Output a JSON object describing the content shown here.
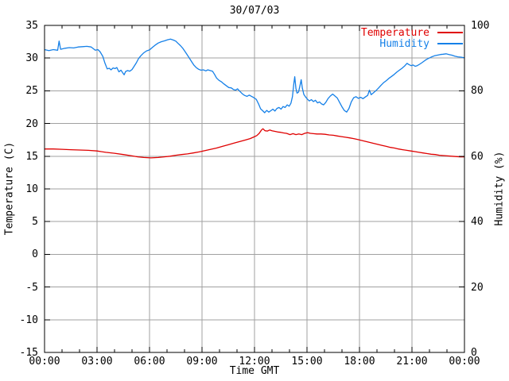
{
  "title": "30/07/03",
  "axes": {
    "x": {
      "label": "Time GMT",
      "tick_labels": [
        "00:00",
        "03:00",
        "06:00",
        "09:00",
        "12:00",
        "15:00",
        "18:00",
        "21:00",
        "00:00"
      ],
      "major_tick_minutes": [
        0,
        180,
        360,
        540,
        720,
        900,
        1080,
        1260,
        1440
      ],
      "minor_tick_step_minutes": 60,
      "range_minutes": [
        0,
        1440
      ]
    },
    "y_left": {
      "label": "Temperature (C)",
      "tick_values": [
        35,
        30,
        25,
        20,
        15,
        10,
        5,
        0,
        -5,
        -10,
        -15
      ],
      "range": [
        -15,
        35
      ]
    },
    "y_right": {
      "label": "Humidity (%)",
      "tick_values": [
        100,
        80,
        60,
        40,
        20,
        0
      ],
      "range": [
        0,
        100
      ]
    }
  },
  "legend": {
    "items": [
      {
        "label": "Temperature",
        "color": "#df0000"
      },
      {
        "label": "Humidity",
        "color": "#1580e8"
      }
    ]
  },
  "colors": {
    "background": "#ffffff",
    "border": "#000000",
    "grid": "#a0a0a0",
    "text": "#000000",
    "temperature_line": "#df0000",
    "humidity_line": "#1580e8"
  },
  "chart_data": {
    "type": "line",
    "title": "30/07/03",
    "xlabel": "Time GMT",
    "x_unit": "minutes since 00:00 GMT",
    "x_range": [
      0,
      1440
    ],
    "grid": true,
    "legend_position": "top-right-inside",
    "series": [
      {
        "name": "Temperature",
        "axis": "left",
        "axis_label": "Temperature (C)",
        "axis_range": [
          -15,
          35
        ],
        "color": "#df0000",
        "points": [
          [
            0,
            16.1
          ],
          [
            30,
            16.1
          ],
          [
            60,
            16.05
          ],
          [
            90,
            16.0
          ],
          [
            120,
            15.95
          ],
          [
            150,
            15.9
          ],
          [
            180,
            15.8
          ],
          [
            210,
            15.6
          ],
          [
            240,
            15.45
          ],
          [
            270,
            15.25
          ],
          [
            300,
            15.05
          ],
          [
            320,
            14.9
          ],
          [
            340,
            14.8
          ],
          [
            365,
            14.75
          ],
          [
            390,
            14.8
          ],
          [
            410,
            14.9
          ],
          [
            430,
            15.0
          ],
          [
            450,
            15.15
          ],
          [
            470,
            15.25
          ],
          [
            490,
            15.35
          ],
          [
            510,
            15.5
          ],
          [
            530,
            15.65
          ],
          [
            550,
            15.85
          ],
          [
            570,
            16.05
          ],
          [
            590,
            16.25
          ],
          [
            610,
            16.5
          ],
          [
            630,
            16.75
          ],
          [
            650,
            17.0
          ],
          [
            670,
            17.25
          ],
          [
            690,
            17.5
          ],
          [
            705,
            17.7
          ],
          [
            718,
            17.95
          ],
          [
            728,
            18.15
          ],
          [
            736,
            18.5
          ],
          [
            744,
            19.0
          ],
          [
            749,
            19.2
          ],
          [
            756,
            18.9
          ],
          [
            764,
            18.85
          ],
          [
            772,
            19.0
          ],
          [
            780,
            18.9
          ],
          [
            790,
            18.8
          ],
          [
            800,
            18.7
          ],
          [
            810,
            18.65
          ],
          [
            820,
            18.55
          ],
          [
            830,
            18.5
          ],
          [
            842,
            18.3
          ],
          [
            852,
            18.45
          ],
          [
            862,
            18.3
          ],
          [
            872,
            18.4
          ],
          [
            882,
            18.3
          ],
          [
            892,
            18.5
          ],
          [
            902,
            18.6
          ],
          [
            912,
            18.5
          ],
          [
            922,
            18.45
          ],
          [
            934,
            18.4
          ],
          [
            948,
            18.4
          ],
          [
            962,
            18.35
          ],
          [
            976,
            18.25
          ],
          [
            990,
            18.2
          ],
          [
            1004,
            18.1
          ],
          [
            1018,
            18.0
          ],
          [
            1032,
            17.9
          ],
          [
            1046,
            17.8
          ],
          [
            1060,
            17.7
          ],
          [
            1074,
            17.55
          ],
          [
            1088,
            17.4
          ],
          [
            1102,
            17.25
          ],
          [
            1116,
            17.1
          ],
          [
            1130,
            16.95
          ],
          [
            1144,
            16.8
          ],
          [
            1158,
            16.65
          ],
          [
            1172,
            16.5
          ],
          [
            1186,
            16.35
          ],
          [
            1200,
            16.25
          ],
          [
            1214,
            16.1
          ],
          [
            1228,
            16.0
          ],
          [
            1242,
            15.9
          ],
          [
            1256,
            15.8
          ],
          [
            1270,
            15.7
          ],
          [
            1284,
            15.6
          ],
          [
            1298,
            15.5
          ],
          [
            1312,
            15.4
          ],
          [
            1326,
            15.3
          ],
          [
            1340,
            15.25
          ],
          [
            1354,
            15.15
          ],
          [
            1368,
            15.1
          ],
          [
            1382,
            15.05
          ],
          [
            1396,
            15.0
          ],
          [
            1410,
            14.95
          ],
          [
            1425,
            14.9
          ],
          [
            1440,
            14.9
          ]
        ]
      },
      {
        "name": "Humidity",
        "axis": "right",
        "axis_label": "Humidity (%)",
        "axis_range": [
          0,
          100
        ],
        "color": "#1580e8",
        "points": [
          [
            0,
            92.6
          ],
          [
            15,
            92.3
          ],
          [
            30,
            92.6
          ],
          [
            45,
            92.4
          ],
          [
            50,
            95.2
          ],
          [
            55,
            92.7
          ],
          [
            70,
            93.0
          ],
          [
            85,
            93.2
          ],
          [
            100,
            93.1
          ],
          [
            115,
            93.4
          ],
          [
            130,
            93.5
          ],
          [
            145,
            93.6
          ],
          [
            160,
            93.4
          ],
          [
            174,
            92.4
          ],
          [
            183,
            92.6
          ],
          [
            190,
            92.0
          ],
          [
            200,
            90.5
          ],
          [
            207,
            88.5
          ],
          [
            215,
            86.7
          ],
          [
            222,
            86.9
          ],
          [
            228,
            86.4
          ],
          [
            235,
            87.0
          ],
          [
            242,
            86.8
          ],
          [
            248,
            87.1
          ],
          [
            255,
            85.8
          ],
          [
            262,
            86.3
          ],
          [
            268,
            85.5
          ],
          [
            273,
            84.9
          ],
          [
            278,
            85.9
          ],
          [
            285,
            86.2
          ],
          [
            292,
            86.0
          ],
          [
            300,
            86.5
          ],
          [
            308,
            87.6
          ],
          [
            315,
            88.6
          ],
          [
            322,
            89.8
          ],
          [
            330,
            90.7
          ],
          [
            340,
            91.6
          ],
          [
            350,
            92.2
          ],
          [
            360,
            92.5
          ],
          [
            370,
            93.3
          ],
          [
            380,
            94.0
          ],
          [
            390,
            94.6
          ],
          [
            400,
            95.0
          ],
          [
            412,
            95.3
          ],
          [
            422,
            95.6
          ],
          [
            432,
            95.8
          ],
          [
            442,
            95.5
          ],
          [
            450,
            95.2
          ],
          [
            458,
            94.5
          ],
          [
            466,
            93.8
          ],
          [
            474,
            93.0
          ],
          [
            482,
            92.0
          ],
          [
            490,
            90.9
          ],
          [
            498,
            89.8
          ],
          [
            505,
            88.8
          ],
          [
            512,
            87.9
          ],
          [
            520,
            87.1
          ],
          [
            528,
            86.6
          ],
          [
            536,
            86.3
          ],
          [
            545,
            86.4
          ],
          [
            553,
            86.1
          ],
          [
            560,
            86.4
          ],
          [
            568,
            86.2
          ],
          [
            576,
            86.0
          ],
          [
            583,
            85.0
          ],
          [
            590,
            83.9
          ],
          [
            598,
            83.2
          ],
          [
            606,
            82.8
          ],
          [
            615,
            82.1
          ],
          [
            624,
            81.5
          ],
          [
            632,
            81.0
          ],
          [
            640,
            80.9
          ],
          [
            648,
            80.4
          ],
          [
            655,
            80.2
          ],
          [
            662,
            80.6
          ],
          [
            670,
            79.8
          ],
          [
            678,
            79.1
          ],
          [
            686,
            78.6
          ],
          [
            694,
            78.3
          ],
          [
            702,
            78.7
          ],
          [
            710,
            78.3
          ],
          [
            718,
            77.9
          ],
          [
            726,
            77.4
          ],
          [
            734,
            76.0
          ],
          [
            741,
            74.5
          ],
          [
            748,
            73.9
          ],
          [
            755,
            73.3
          ],
          [
            762,
            74.0
          ],
          [
            769,
            73.5
          ],
          [
            776,
            73.9
          ],
          [
            783,
            74.4
          ],
          [
            790,
            73.8
          ],
          [
            797,
            74.6
          ],
          [
            804,
            74.9
          ],
          [
            811,
            74.4
          ],
          [
            818,
            75.2
          ],
          [
            825,
            74.9
          ],
          [
            832,
            75.7
          ],
          [
            839,
            75.3
          ],
          [
            845,
            76.2
          ],
          [
            850,
            78.2
          ],
          [
            855,
            82.3
          ],
          [
            858,
            84.3
          ],
          [
            862,
            80.7
          ],
          [
            866,
            79.3
          ],
          [
            871,
            79.6
          ],
          [
            876,
            81.6
          ],
          [
            880,
            83.4
          ],
          [
            884,
            80.9
          ],
          [
            889,
            78.9
          ],
          [
            895,
            78.1
          ],
          [
            901,
            77.5
          ],
          [
            908,
            76.9
          ],
          [
            915,
            77.3
          ],
          [
            922,
            76.7
          ],
          [
            929,
            77.1
          ],
          [
            936,
            76.3
          ],
          [
            943,
            76.6
          ],
          [
            950,
            76.0
          ],
          [
            957,
            75.7
          ],
          [
            964,
            76.4
          ],
          [
            972,
            77.6
          ],
          [
            980,
            78.4
          ],
          [
            988,
            79.0
          ],
          [
            996,
            78.4
          ],
          [
            1004,
            77.8
          ],
          [
            1012,
            76.4
          ],
          [
            1020,
            75.1
          ],
          [
            1028,
            74.0
          ],
          [
            1036,
            73.5
          ],
          [
            1044,
            74.6
          ],
          [
            1052,
            76.6
          ],
          [
            1060,
            77.9
          ],
          [
            1068,
            78.2
          ],
          [
            1076,
            77.7
          ],
          [
            1084,
            78.0
          ],
          [
            1092,
            77.6
          ],
          [
            1100,
            78.1
          ],
          [
            1108,
            78.6
          ],
          [
            1114,
            80.2
          ],
          [
            1120,
            78.8
          ],
          [
            1128,
            79.4
          ],
          [
            1136,
            80.0
          ],
          [
            1145,
            80.8
          ],
          [
            1154,
            81.7
          ],
          [
            1163,
            82.5
          ],
          [
            1172,
            83.1
          ],
          [
            1181,
            83.8
          ],
          [
            1190,
            84.4
          ],
          [
            1199,
            85.0
          ],
          [
            1208,
            85.7
          ],
          [
            1217,
            86.3
          ],
          [
            1226,
            86.9
          ],
          [
            1235,
            87.6
          ],
          [
            1243,
            88.4
          ],
          [
            1250,
            88.0
          ],
          [
            1257,
            87.7
          ],
          [
            1264,
            87.9
          ],
          [
            1271,
            87.5
          ],
          [
            1278,
            87.7
          ],
          [
            1286,
            88.1
          ],
          [
            1294,
            88.6
          ],
          [
            1302,
            89.1
          ],
          [
            1310,
            89.6
          ],
          [
            1319,
            90.0
          ],
          [
            1328,
            90.4
          ],
          [
            1337,
            90.7
          ],
          [
            1347,
            90.9
          ],
          [
            1357,
            91.1
          ],
          [
            1367,
            91.2
          ],
          [
            1377,
            91.3
          ],
          [
            1387,
            91.1
          ],
          [
            1397,
            90.9
          ],
          [
            1407,
            90.6
          ],
          [
            1417,
            90.4
          ],
          [
            1428,
            90.3
          ],
          [
            1440,
            90.1
          ]
        ]
      }
    ]
  }
}
